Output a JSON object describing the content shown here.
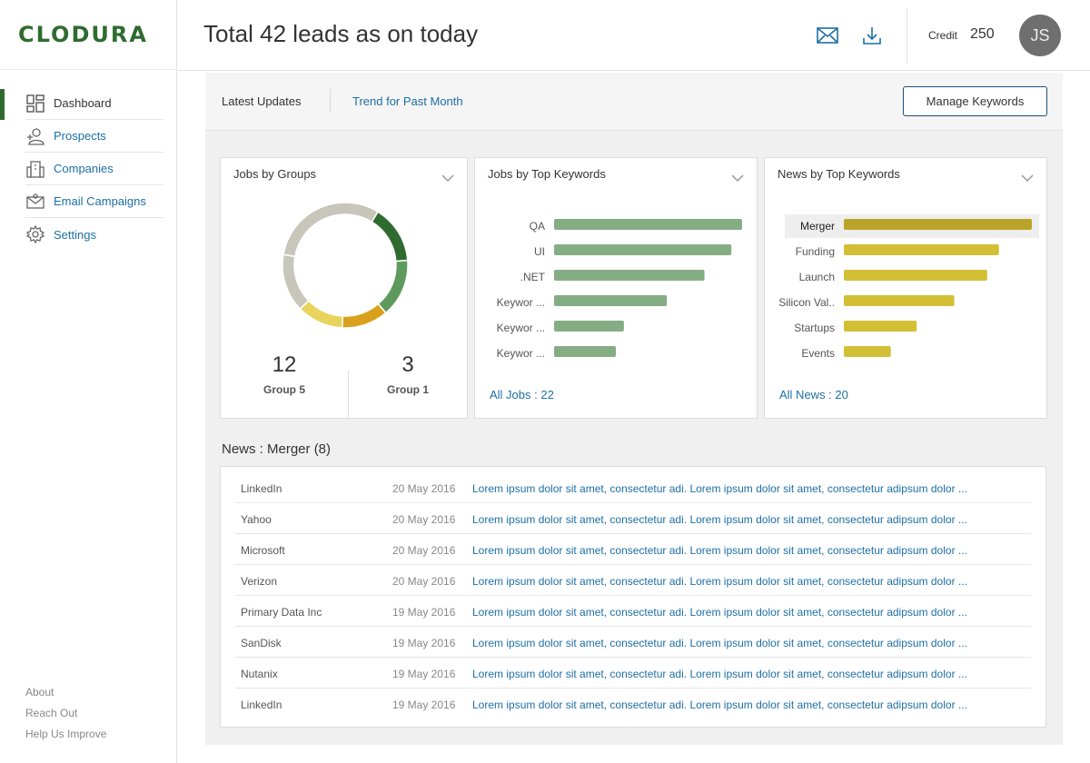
{
  "app": {
    "logo": "CLODURA"
  },
  "header": {
    "title": "Total 42 leads as on today",
    "credit_label": "Credit",
    "credit_value": "250",
    "avatar_initials": "JS"
  },
  "sidebar": {
    "items": [
      {
        "label": "Dashboard",
        "icon": "dashboard-icon",
        "active": true
      },
      {
        "label": "Prospects",
        "icon": "prospects-icon",
        "active": false
      },
      {
        "label": "Companies",
        "icon": "companies-icon",
        "active": false
      },
      {
        "label": "Email Campaigns",
        "icon": "email-campaigns-icon",
        "active": false
      },
      {
        "label": "Settings",
        "icon": "gear-icon",
        "active": false
      }
    ],
    "footer": [
      "About",
      "Reach Out",
      "Help Us Improve"
    ]
  },
  "tabs": {
    "latest": "Latest Updates",
    "trend": "Trend for Past Month",
    "manage_button": "Manage Keywords"
  },
  "cards": {
    "groups": {
      "title": "Jobs by Groups",
      "stats": [
        {
          "value": "12",
          "label": "Group 5"
        },
        {
          "value": "3",
          "label": "Group 1"
        }
      ]
    },
    "jobs": {
      "title": "Jobs by Top Keywords",
      "link": "All Jobs : 22"
    },
    "news": {
      "title": "News by Top Keywords",
      "link": "All News : 20"
    }
  },
  "chart_data": [
    {
      "type": "pie",
      "values": [
        15,
        15,
        12,
        12,
        15,
        31
      ],
      "colors": [
        "#2f6b2f",
        "#5e9a5e",
        "#d9a11b",
        "#e8d45c",
        "#c8c5bb",
        "#c8c5bb"
      ]
    },
    {
      "type": "bar",
      "orientation": "horizontal",
      "categories": [
        "QA",
        "UI",
        ".NET",
        "Keywor ...",
        "Keywor ...",
        "Keywor ..."
      ],
      "values": [
        7,
        6.6,
        5.6,
        4.2,
        2.6,
        2.3
      ],
      "xlim": [
        0,
        7
      ],
      "color": "#85ad84"
    },
    {
      "type": "bar",
      "orientation": "horizontal",
      "categories": [
        "Merger",
        "Funding",
        "Launch",
        "Silicon Val..",
        "Startups",
        "Events"
      ],
      "values": [
        8,
        6.6,
        6.1,
        4.7,
        3.1,
        2
      ],
      "xlim": [
        0,
        8
      ],
      "color": "#d2bf35",
      "highlight_color": "#b9a427",
      "highlight_index": 0
    }
  ],
  "news_section": {
    "heading": "News : Merger (8)",
    "rows": [
      {
        "company": "LinkedIn",
        "date": "20 May 2016",
        "text": "Lorem ipsum dolor sit amet, consectetur adi. Lorem ipsum dolor sit amet, consectetur adipsum dolor ..."
      },
      {
        "company": "Yahoo",
        "date": "20 May 2016",
        "text": "Lorem ipsum dolor sit amet, consectetur adi. Lorem ipsum dolor sit amet, consectetur adipsum dolor ..."
      },
      {
        "company": "Microsoft",
        "date": "20 May 2016",
        "text": "Lorem ipsum dolor sit amet, consectetur adi. Lorem ipsum dolor sit amet, consectetur adipsum dolor ..."
      },
      {
        "company": "Verizon",
        "date": "20 May 2016",
        "text": "Lorem ipsum dolor sit amet, consectetur adi. Lorem ipsum dolor sit amet, consectetur adipsum dolor ..."
      },
      {
        "company": "Primary Data Inc",
        "date": "19 May 2016",
        "text": "Lorem ipsum dolor sit amet, consectetur adi. Lorem ipsum dolor sit amet, consectetur adipsum dolor ..."
      },
      {
        "company": "SanDisk",
        "date": "19 May 2016",
        "text": "Lorem ipsum dolor sit amet, consectetur adi. Lorem ipsum dolor sit amet, consectetur adipsum dolor ..."
      },
      {
        "company": "Nutanix",
        "date": "19 May 2016",
        "text": "Lorem ipsum dolor sit amet, consectetur adi. Lorem ipsum dolor sit amet, consectetur adipsum dolor ..."
      },
      {
        "company": "LinkedIn",
        "date": "19 May 2016",
        "text": "Lorem ipsum dolor sit amet, consectetur adi. Lorem ipsum dolor sit amet, consectetur adipsum dolor ..."
      }
    ]
  }
}
